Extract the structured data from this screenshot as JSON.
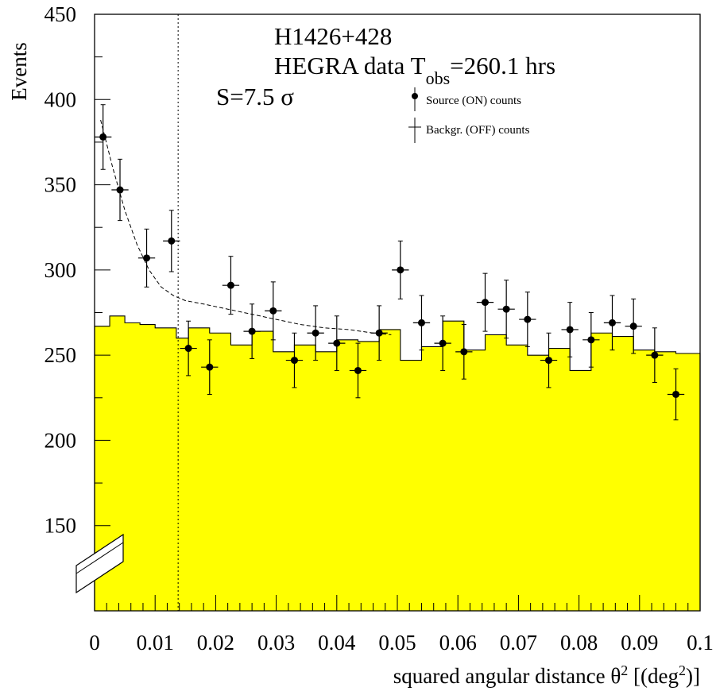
{
  "chart_data": {
    "type": "histogram-with-points",
    "x": [
      0.00125,
      0.00375,
      0.00625,
      0.00875,
      0.01125,
      0.01375,
      0.01625,
      0.01875,
      0.02125,
      0.02375,
      0.02625,
      0.02875,
      0.03125,
      0.03375,
      0.03625,
      0.03875,
      0.04125,
      0.04375,
      0.04625,
      0.04875,
      0.05125,
      0.05375,
      0.05625,
      0.05875,
      0.06125,
      0.06375,
      0.06625,
      0.06875,
      0.07125,
      0.07375,
      0.07625,
      0.07875,
      0.08125,
      0.08375,
      0.08625,
      0.08875,
      0.09125,
      0.09375,
      0.09625,
      0.09875
    ],
    "series": [
      {
        "name": "Source (ON) counts",
        "points": [
          {
            "x": 0.0014,
            "y": 378,
            "xerr": 0.0014,
            "yerr": 19
          },
          {
            "x": 0.0042,
            "y": 347,
            "xerr": 0.0014,
            "yerr": 18
          },
          {
            "x": 0.0086,
            "y": 307,
            "xerr": 0.0014,
            "yerr": 17
          },
          {
            "x": 0.0127,
            "y": 317,
            "xerr": 0.0014,
            "yerr": 18
          },
          {
            "x": 0.0155,
            "y": 254,
            "xerr": 0.0014,
            "yerr": 16
          },
          {
            "x": 0.019,
            "y": 243,
            "xerr": 0.0014,
            "yerr": 16
          },
          {
            "x": 0.0225,
            "y": 291,
            "xerr": 0.0014,
            "yerr": 17
          },
          {
            "x": 0.026,
            "y": 264,
            "xerr": 0.0014,
            "yerr": 16
          },
          {
            "x": 0.0295,
            "y": 276,
            "xerr": 0.0014,
            "yerr": 17
          },
          {
            "x": 0.033,
            "y": 247,
            "xerr": 0.0014,
            "yerr": 16
          },
          {
            "x": 0.0365,
            "y": 263,
            "xerr": 0.0014,
            "yerr": 16
          },
          {
            "x": 0.04,
            "y": 257,
            "xerr": 0.0014,
            "yerr": 16
          },
          {
            "x": 0.0435,
            "y": 241,
            "xerr": 0.0014,
            "yerr": 16
          },
          {
            "x": 0.047,
            "y": 263,
            "xerr": 0.0014,
            "yerr": 16
          },
          {
            "x": 0.0505,
            "y": 300,
            "xerr": 0.0014,
            "yerr": 17
          },
          {
            "x": 0.054,
            "y": 269,
            "xerr": 0.0014,
            "yerr": 16
          },
          {
            "x": 0.0575,
            "y": 257,
            "xerr": 0.0014,
            "yerr": 16
          },
          {
            "x": 0.061,
            "y": 252,
            "xerr": 0.0014,
            "yerr": 16
          },
          {
            "x": 0.0645,
            "y": 281,
            "xerr": 0.0014,
            "yerr": 17
          },
          {
            "x": 0.068,
            "y": 277,
            "xerr": 0.0014,
            "yerr": 17
          },
          {
            "x": 0.0715,
            "y": 271,
            "xerr": 0.0014,
            "yerr": 16
          },
          {
            "x": 0.075,
            "y": 247,
            "xerr": 0.0014,
            "yerr": 16
          },
          {
            "x": 0.0785,
            "y": 265,
            "xerr": 0.0014,
            "yerr": 16
          },
          {
            "x": 0.082,
            "y": 259,
            "xerr": 0.0014,
            "yerr": 16
          },
          {
            "x": 0.0855,
            "y": 269,
            "xerr": 0.0014,
            "yerr": 16
          },
          {
            "x": 0.089,
            "y": 267,
            "xerr": 0.0014,
            "yerr": 16
          },
          {
            "x": 0.0925,
            "y": 250,
            "xerr": 0.0014,
            "yerr": 16
          },
          {
            "x": 0.096,
            "y": 227,
            "xerr": 0.0014,
            "yerr": 15
          }
        ]
      },
      {
        "name": "Backgr. (OFF) counts",
        "bin_edges": [
          0.0,
          0.0025,
          0.005,
          0.0075,
          0.01,
          0.0135,
          0.0155,
          0.019,
          0.0225,
          0.026,
          0.0295,
          0.033,
          0.0365,
          0.04,
          0.0435,
          0.047,
          0.0505,
          0.054,
          0.0575,
          0.061,
          0.0645,
          0.068,
          0.0715,
          0.075,
          0.0785,
          0.082,
          0.0855,
          0.089,
          0.0925,
          0.096,
          0.1
        ],
        "values": [
          267,
          273,
          269,
          268,
          266,
          260,
          266,
          263,
          256,
          264,
          252,
          256,
          252,
          259,
          258,
          265,
          247,
          255,
          270,
          253,
          262,
          256,
          250,
          254,
          241,
          263,
          261,
          253,
          252,
          251
        ]
      }
    ],
    "fit_curve": {
      "x": [
        0.001,
        0.003,
        0.005,
        0.007,
        0.009,
        0.011,
        0.013,
        0.015,
        0.018,
        0.022,
        0.026,
        0.03,
        0.034,
        0.038,
        0.042,
        0.046,
        0.049
      ],
      "y": [
        388,
        360,
        335,
        315,
        300,
        290,
        285,
        282,
        280,
        277,
        274,
        271,
        268,
        266,
        265,
        263,
        262
      ]
    },
    "cut_line_x": 0.0138,
    "xlabel_main": "squared angular distance θ",
    "xlabel_sup": "2",
    "xlabel_tail": " [(deg",
    "xlabel_sup2": "2",
    "xlabel_end": ")]",
    "ylabel": "Events",
    "xlim": [
      0,
      0.1
    ],
    "ylim": [
      100,
      450
    ],
    "xticks": [
      "0",
      "0.01",
      "0.02",
      "0.03",
      "0.04",
      "0.05",
      "0.06",
      "0.07",
      "0.08",
      "0.09",
      "0.1"
    ],
    "yticks": [
      "150",
      "200",
      "250",
      "300",
      "350",
      "400",
      "450"
    ],
    "annotations": {
      "source": "H1426+428",
      "hegra_prefix": "HEGRA data T",
      "hegra_sub": "obs",
      "hegra_suffix": "=260.1 hrs",
      "significance": "S=7.5 σ"
    },
    "legend": [
      "Source (ON) counts",
      "Backgr. (OFF) counts"
    ],
    "colors": {
      "background_fill": "#ffff00",
      "marker": "#000000"
    }
  }
}
